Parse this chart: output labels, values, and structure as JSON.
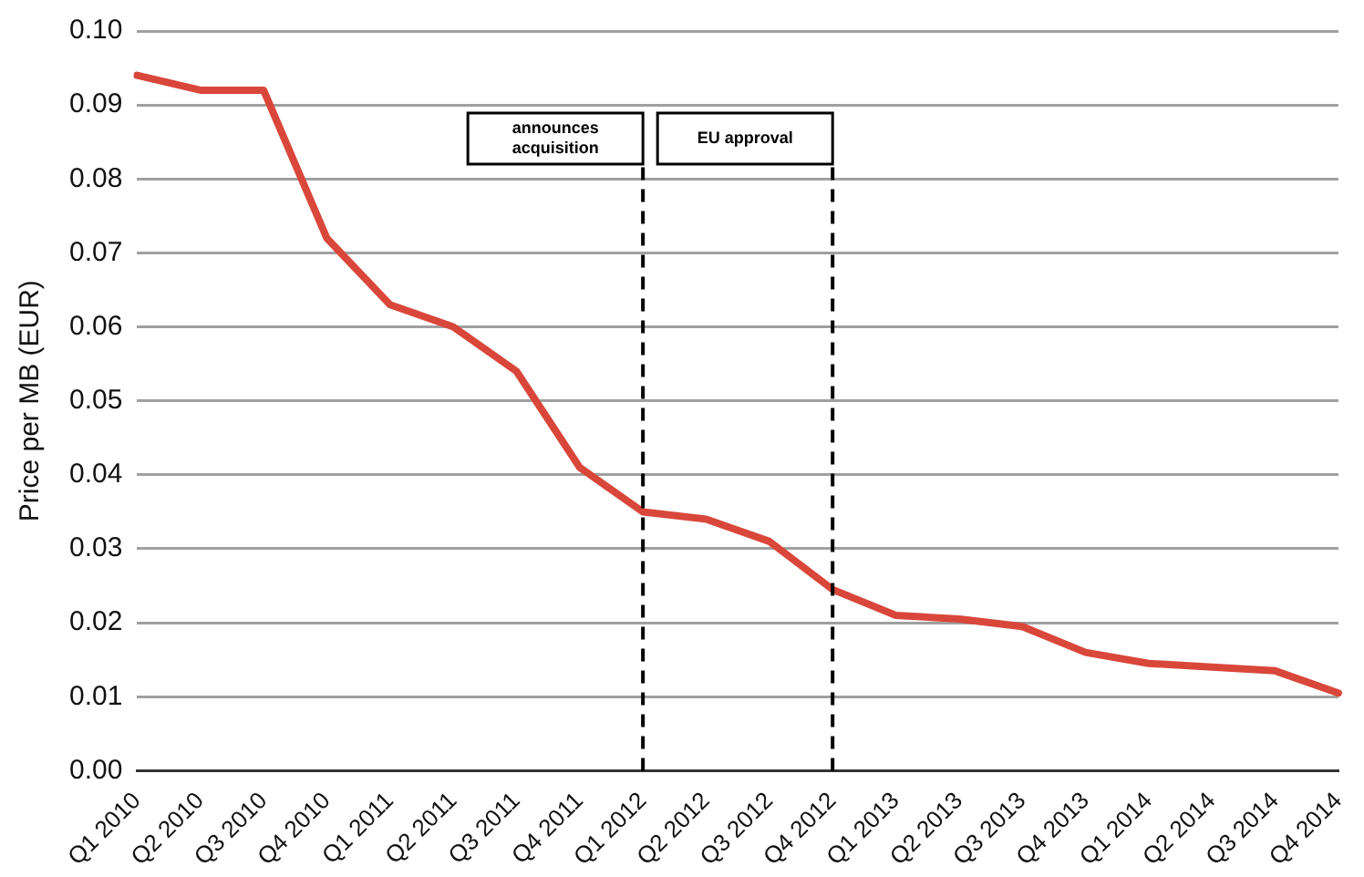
{
  "chart_data": {
    "type": "line",
    "ylabel": "Price per MB (EUR)",
    "categories": [
      "Q1 2010",
      "Q2 2010",
      "Q3 2010",
      "Q4 2010",
      "Q1 2011",
      "Q2 2011",
      "Q3 2011",
      "Q4 2011",
      "Q1 2012",
      "Q2 2012",
      "Q3 2012",
      "Q4 2012",
      "Q1 2013",
      "Q2 2013",
      "Q3 2013",
      "Q4 2013",
      "Q1 2014",
      "Q2 2014",
      "Q3 2014",
      "Q4 2014"
    ],
    "series": [
      {
        "color": "#d9473b",
        "values": [
          0.094,
          0.092,
          0.092,
          0.072,
          0.063,
          0.06,
          0.054,
          0.041,
          0.035,
          0.034,
          0.031,
          0.0245,
          0.021,
          0.0205,
          0.0195,
          0.016,
          0.0145,
          0.014,
          0.0135,
          0.0105
        ]
      }
    ],
    "ylim": [
      0,
      0.1
    ],
    "yticks": [
      {
        "value": 0,
        "label": "0.00"
      },
      0.01,
      0.02,
      0.03,
      0.04,
      0.05,
      0.06,
      0.07,
      0.08,
      0.09,
      {
        "value": 0.1,
        "label": "0.10"
      }
    ],
    "ref_lines": [
      {
        "axis": "x",
        "value": "Q1 2012",
        "label": "announces acquisition",
        "line_style": "dashed",
        "color": "#000000"
      },
      {
        "axis": "x",
        "value": "Q4 2012",
        "label": "EU approval",
        "line_style": "dashed",
        "color": "#000000"
      }
    ],
    "grid": "y",
    "legend": false,
    "marker": "none",
    "line_style": "solid"
  }
}
